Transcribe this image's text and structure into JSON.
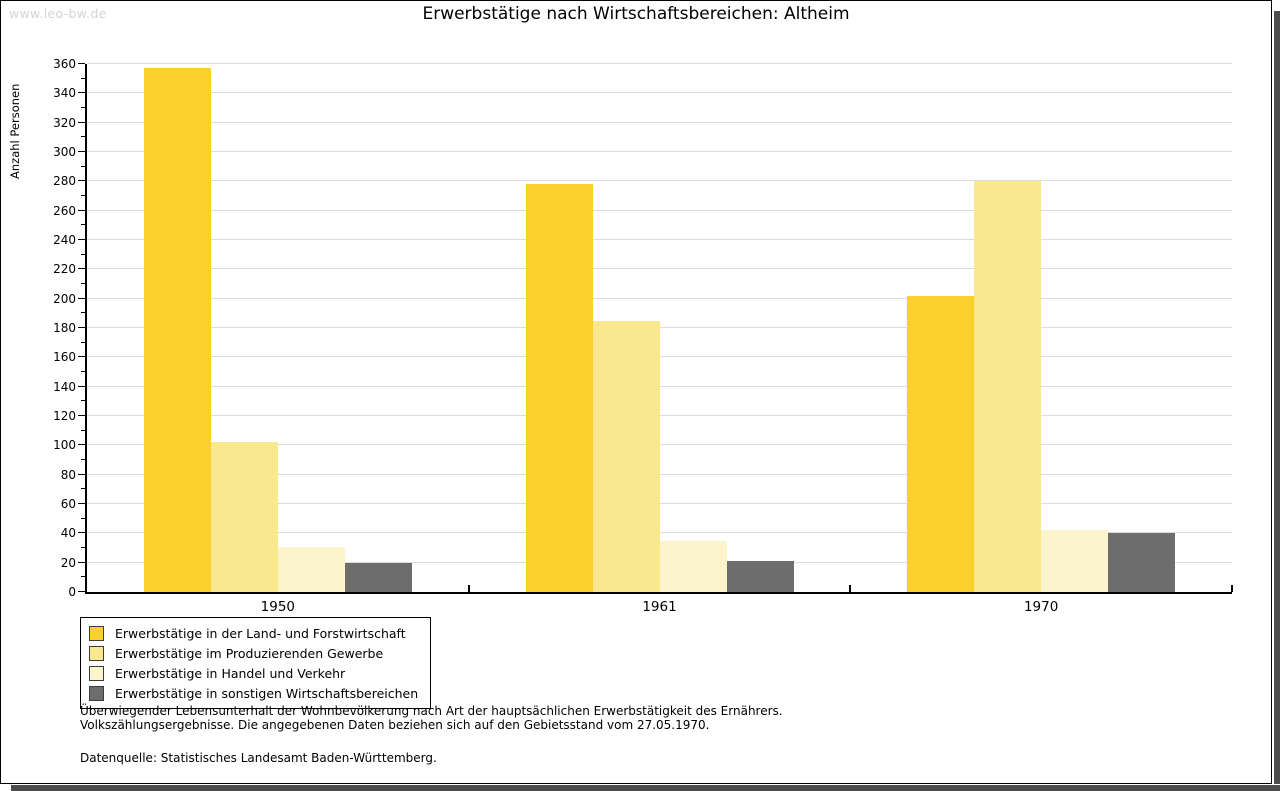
{
  "watermark": "www.leo-bw.de",
  "title": "Erwerbstätige nach Wirtschaftsbereichen: Altheim",
  "chart_data": {
    "type": "bar",
    "title": "Erwerbstätige nach Wirtschaftsbereichen: Altheim",
    "xlabel": "",
    "ylabel": "Anzahl Personen",
    "categories": [
      "1950",
      "1961",
      "1970"
    ],
    "series": [
      {
        "name": "Erwerbstätige in der Land- und Forstwirtschaft",
        "color": "#fbd02d",
        "values": [
          357,
          278,
          202
        ]
      },
      {
        "name": "Erwerbstätige im Produzierenden Gewerbe",
        "color": "#fae88e",
        "values": [
          102,
          185,
          280
        ]
      },
      {
        "name": "Erwerbstätige in Handel und Verkehr",
        "color": "#fcf4cd",
        "values": [
          31,
          35,
          42
        ]
      },
      {
        "name": "Erwerbstätige in sonstigen Wirtschaftsbereichen",
        "color": "#6d6d6d",
        "values": [
          20,
          21,
          40
        ]
      }
    ],
    "ylim": [
      0,
      360
    ],
    "ytick_step": 20,
    "yminor_step": 10,
    "grid": true,
    "legend_position": "bottom-left",
    "gridline_color": "#dcdcdc"
  },
  "footer": {
    "note_line1": "Überwiegender Lebensunterhalt der Wohnbevölkerung nach Art der hauptsächlichen Erwerbstätigkeit des Ernährers.",
    "note_line2": "Volkszählungsergebnisse. Die angegebenen Daten beziehen sich auf den Gebietsstand vom 27.05.1970.",
    "source": "Datenquelle: Statistisches Landesamt Baden-Württemberg."
  }
}
